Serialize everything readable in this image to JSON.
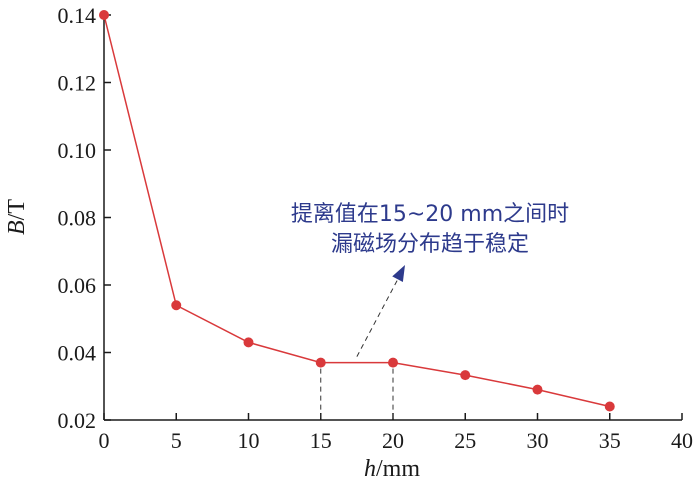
{
  "chart_data": {
    "type": "line",
    "x": [
      0,
      5,
      10,
      15,
      20,
      25,
      30,
      35
    ],
    "series": [
      {
        "values": [
          0.14,
          0.054,
          0.043,
          0.037,
          0.037,
          0.0333,
          0.029,
          0.024
        ]
      }
    ],
    "xlim": [
      0,
      40
    ],
    "ylim": [
      0.02,
      0.14
    ],
    "x_ticks": [
      0,
      5,
      10,
      15,
      20,
      25,
      30,
      35,
      40
    ],
    "y_ticks": [
      0.02,
      0.04,
      0.06,
      0.08,
      0.1,
      0.12,
      0.14
    ],
    "y_tick_labels": [
      "0.02",
      "0.04",
      "0.06",
      "0.08",
      "0.10",
      "0.12",
      "0.14"
    ],
    "xlabel": {
      "italic": "h",
      "rest": "/mm"
    },
    "ylabel": {
      "italic": "B",
      "rest": "/T"
    },
    "grid": false,
    "annotation": {
      "lines": [
        "提离值在15~20 mm之间时",
        "漏磁场分布趋于稳定"
      ],
      "x_range": [
        15,
        20
      ]
    },
    "colors": {
      "series": "#d9393b",
      "annotation": "#2d3a8c",
      "axis": "#1a1a1a"
    }
  }
}
